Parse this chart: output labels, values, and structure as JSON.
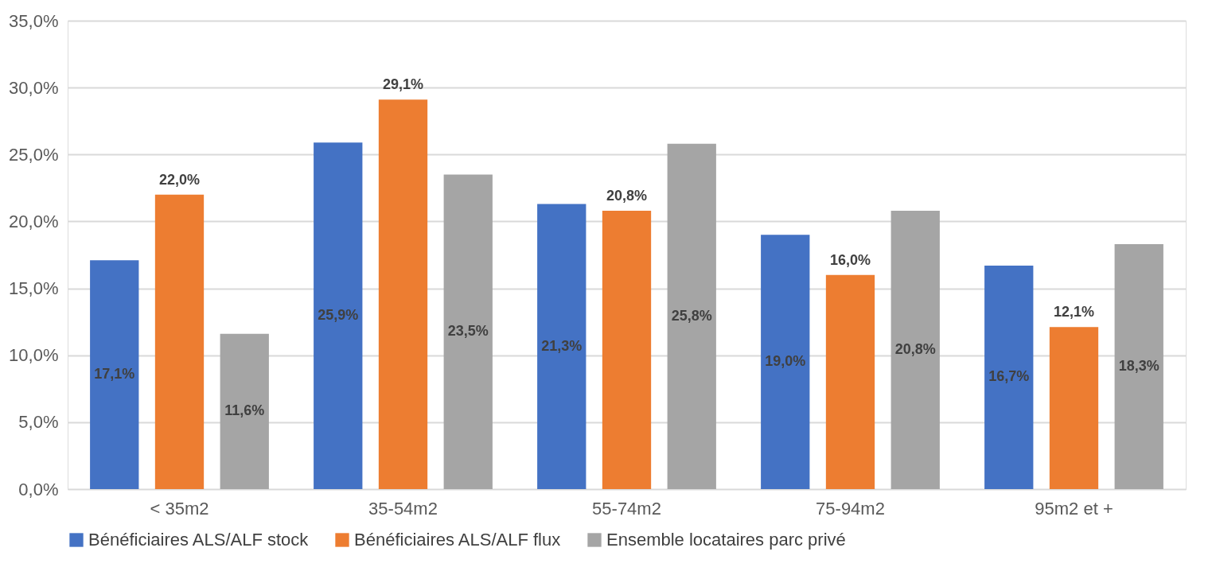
{
  "chart_data": {
    "type": "bar",
    "categories": [
      "< 35m2",
      "35-54m2",
      "55-74m2",
      "75-94m2",
      "95m2 et +"
    ],
    "series": [
      {
        "name": "Bénéficiaires ALS/ALF stock",
        "color": "#4472c4",
        "values": [
          17.1,
          25.9,
          21.3,
          19.0,
          16.7
        ],
        "value_labels": [
          "17,1%",
          "25,9%",
          "21,3%",
          "19,0%",
          "16,7%"
        ]
      },
      {
        "name": "Bénéficiaires ALS/ALF flux",
        "color": "#ed7d31",
        "values": [
          22.0,
          29.1,
          20.8,
          16.0,
          12.1
        ],
        "value_labels": [
          "22,0%",
          "29,1%",
          "20,8%",
          "16,0%",
          "12,1%"
        ]
      },
      {
        "name": "Ensemble locataires parc privé",
        "color": "#a5a5a5",
        "values": [
          11.6,
          23.5,
          25.8,
          20.8,
          18.3
        ],
        "value_labels": [
          "11,6%",
          "23,5%",
          "25,8%",
          "20,8%",
          "18,3%"
        ]
      }
    ],
    "ylim": [
      0,
      35
    ],
    "yticks": [
      {
        "value": 0,
        "label": "0,0%"
      },
      {
        "value": 5,
        "label": "5,0%"
      },
      {
        "value": 10,
        "label": "10,0%"
      },
      {
        "value": 15,
        "label": "15,0%"
      },
      {
        "value": 20,
        "label": "20,0%"
      },
      {
        "value": 25,
        "label": "25,0%"
      },
      {
        "value": 30,
        "label": "30,0%"
      },
      {
        "value": 35,
        "label": "35,0%"
      }
    ],
    "grid": "y",
    "legend": "bottom"
  }
}
